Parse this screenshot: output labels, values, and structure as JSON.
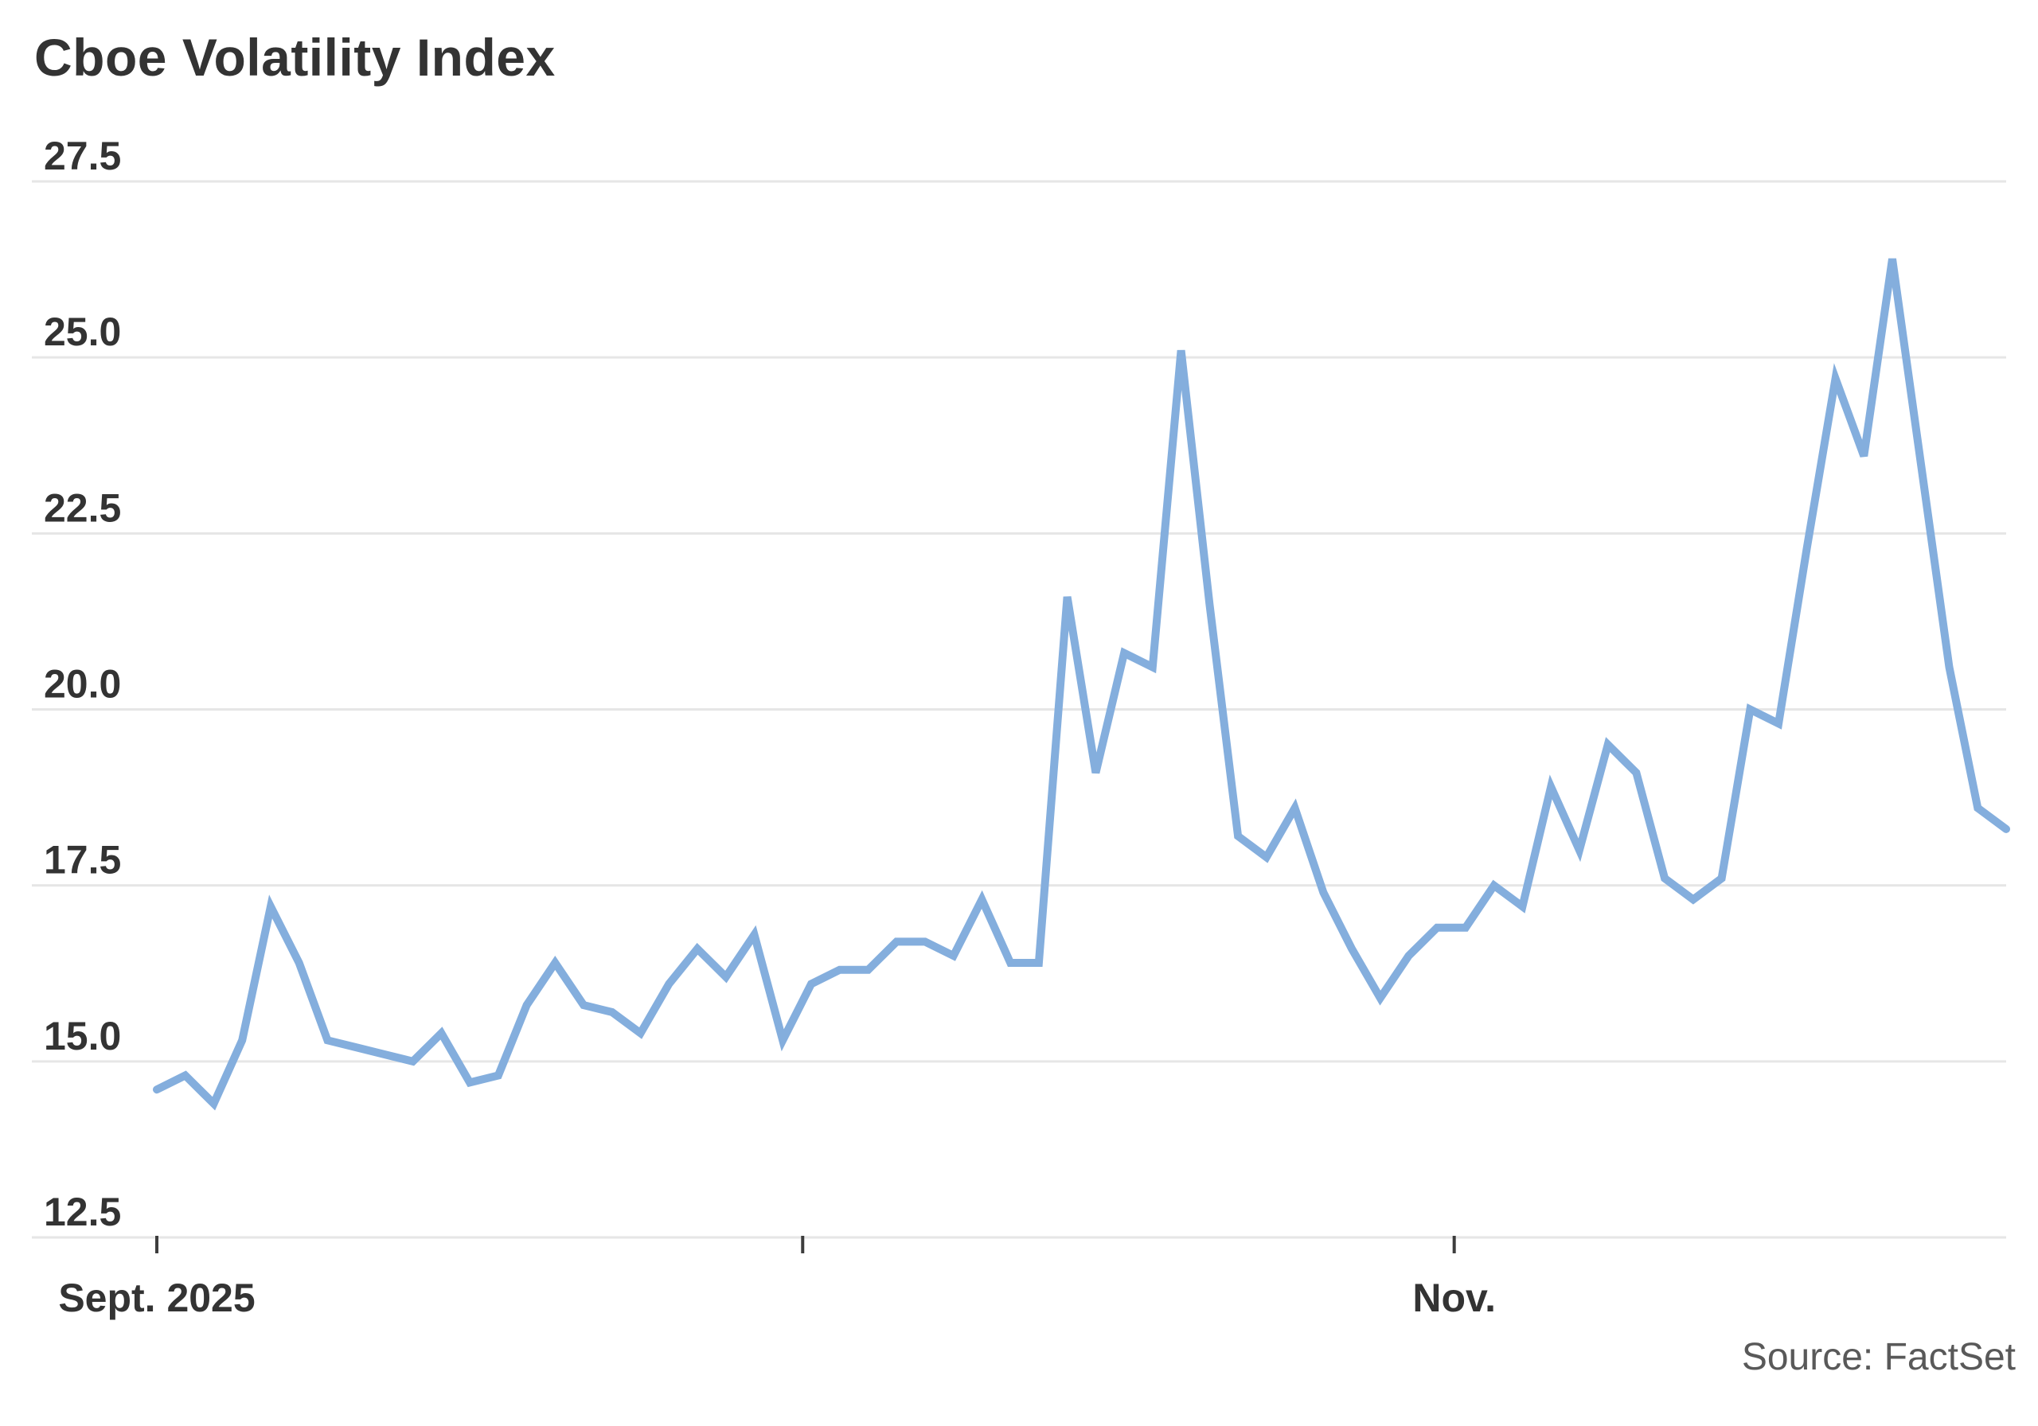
{
  "header": {
    "title": "Cboe Volatility Index"
  },
  "footer": {
    "source": "Source: FactSet"
  },
  "chart_data": {
    "type": "line",
    "title": "Cboe Volatility Index",
    "xlabel": "",
    "ylabel": "",
    "ylim": [
      12.5,
      27.5
    ],
    "grid": "horizontal",
    "legend": "none",
    "y_tick_labels": [
      "27.5",
      "25.0",
      "22.5",
      "20.0",
      "17.5",
      "15.0",
      "12.5"
    ],
    "x_ticks": [
      {
        "label": "Sept. 2025",
        "index": 0
      },
      {
        "label": "",
        "index": 22.7
      },
      {
        "label": "Nov.",
        "index": 45.6
      }
    ],
    "series": [
      {
        "name": "Cboe Volatility Index",
        "values": [
          14.6,
          14.8,
          14.4,
          15.3,
          17.2,
          16.4,
          15.3,
          15.2,
          15.1,
          15.0,
          15.4,
          14.7,
          14.8,
          15.8,
          16.4,
          15.8,
          15.7,
          15.4,
          16.1,
          16.6,
          16.2,
          16.8,
          15.3,
          16.1,
          16.3,
          16.3,
          16.7,
          16.7,
          16.5,
          17.3,
          16.4,
          16.4,
          21.6,
          19.1,
          20.8,
          20.6,
          25.1,
          21.5,
          18.2,
          17.9,
          18.6,
          17.4,
          16.6,
          15.9,
          16.5,
          16.9,
          16.9,
          17.5,
          17.2,
          18.9,
          18.0,
          19.5,
          19.1,
          17.6,
          17.3,
          17.6,
          20.0,
          19.8,
          22.3,
          24.7,
          23.6,
          26.4,
          23.5,
          20.6,
          18.6,
          18.3
        ]
      }
    ],
    "colors": {
      "line": "#84aedd",
      "grid": "#e6e6e6",
      "text": "#333333",
      "tick_mark": "#3d3d3d",
      "source_text": "#595959",
      "background": "#ffffff"
    }
  }
}
